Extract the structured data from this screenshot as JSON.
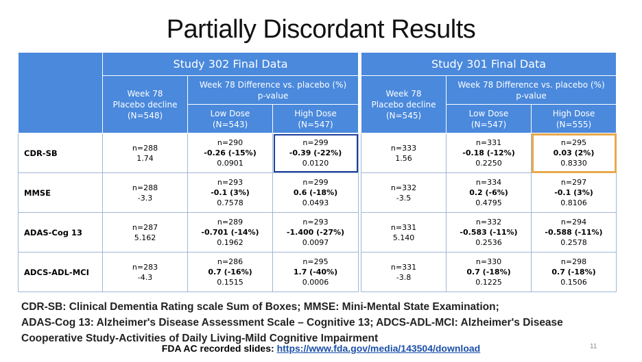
{
  "title": "Partially Discordant Results",
  "row_labels": [
    "CDR-SB",
    "MMSE",
    "ADAS-Cog 13",
    "ADCS-ADL-MCI"
  ],
  "study302": {
    "header": "Study 302 Final Data",
    "placebo_header": [
      "Week 78",
      "Placebo decline",
      "(N=548)"
    ],
    "diff_header": [
      "Week 78 Difference vs. placebo (%)",
      "p-value"
    ],
    "low_dose": [
      "Low Dose",
      "(N=543)"
    ],
    "high_dose": [
      "High Dose",
      "(N=547)"
    ],
    "rows": [
      {
        "placebo": [
          "n=288",
          "1.74"
        ],
        "low": [
          "n=290",
          "-0.26 (-15%)",
          "0.0901"
        ],
        "high": [
          "n=299",
          "-0.39 (-22%)",
          "0.0120"
        ]
      },
      {
        "placebo": [
          "n=288",
          "-3.3"
        ],
        "low": [
          "n=293",
          "-0.1 (3%)",
          "0.7578"
        ],
        "high": [
          "n=299",
          "0.6 (-18%)",
          "0.0493"
        ]
      },
      {
        "placebo": [
          "n=287",
          "5.162"
        ],
        "low": [
          "n=289",
          "-0.701 (-14%)",
          "0.1962"
        ],
        "high": [
          "n=293",
          "-1.400 (-27%)",
          "0.0097"
        ]
      },
      {
        "placebo": [
          "n=283",
          "-4.3"
        ],
        "low": [
          "n=286",
          "0.7 (-16%)",
          "0.1515"
        ],
        "high": [
          "n=295",
          "1.7 (-40%)",
          "0.0006"
        ]
      }
    ]
  },
  "study301": {
    "header": "Study 301 Final Data",
    "placebo_header": [
      "Week 78",
      "Placebo decline",
      "(N=545)"
    ],
    "diff_header": [
      "Week 78 Difference vs. placebo (%)",
      "p-value"
    ],
    "low_dose": [
      "Low Dose",
      "(N=547)"
    ],
    "high_dose": [
      "High Dose",
      "(N=555)"
    ],
    "rows": [
      {
        "placebo": [
          "n=333",
          "1.56"
        ],
        "low": [
          "n=331",
          "-0.18 (-12%)",
          "0.2250"
        ],
        "high": [
          "n=295",
          "0.03 (2%)",
          "0.8330"
        ]
      },
      {
        "placebo": [
          "n=332",
          "-3.5"
        ],
        "low": [
          "n=334",
          "0.2 (-6%)",
          "0.4795"
        ],
        "high": [
          "n=297",
          "-0.1 (3%)",
          "0.8106"
        ]
      },
      {
        "placebo": [
          "n=331",
          "5.140"
        ],
        "low": [
          "n=332",
          "-0.583 (-11%)",
          "0.2536"
        ],
        "high": [
          "n=294",
          "-0.588 (-11%)",
          "0.2578"
        ]
      },
      {
        "placebo": [
          "n=331",
          "-3.8"
        ],
        "low": [
          "n=330",
          "0.7 (-18%)",
          "0.1225"
        ],
        "high": [
          "n=298",
          "0.7 (-18%)",
          "0.1506"
        ]
      }
    ]
  },
  "footnote": [
    "CDR-SB: Clinical Dementia Rating scale Sum of Boxes; MMSE: Mini-Mental State Examination;",
    "ADAS-Cog 13: Alzheimer's Disease Assessment Scale – Cognitive 13; ADCS-ADL-MCI: Alzheimer's Disease",
    "Cooperative Study-Activities of Daily Living-Mild Cognitive Impairment"
  ],
  "source": {
    "label": "FDA AC recorded slides:",
    "url": "https://www.fda.gov/media/143504/download"
  },
  "page_number": "11",
  "colors": {
    "header_blue": "#4a89dc",
    "highlight_302": "#1b3f9a",
    "highlight_301": "#e8a84a"
  }
}
